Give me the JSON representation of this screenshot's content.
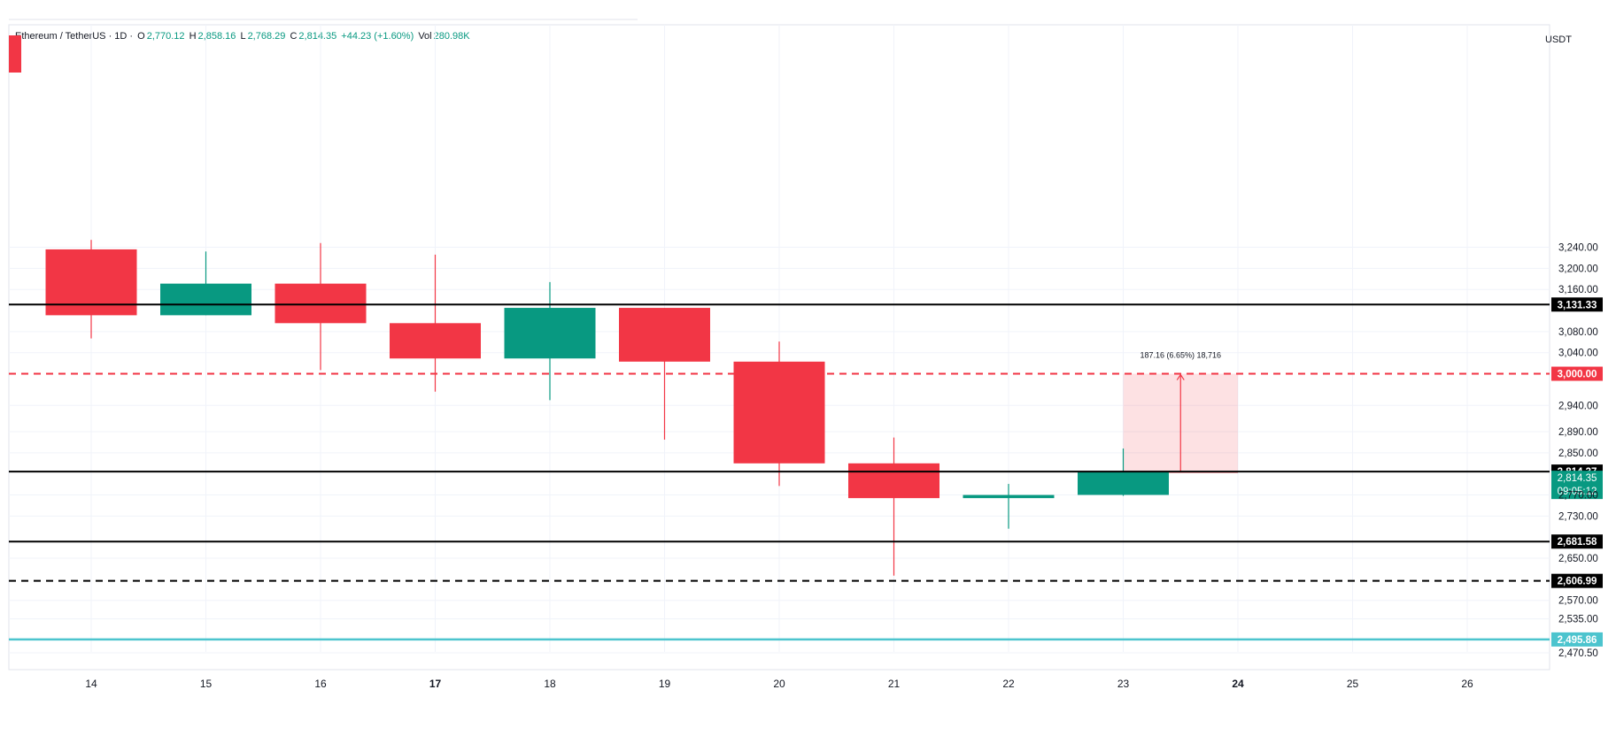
{
  "header": {
    "symbol": "Ethereum / TetherUS · 1D ·",
    "o_label": "O",
    "o_value": "2,770.12",
    "h_label": "H",
    "h_value": "2,858.16",
    "l_label": "L",
    "l_value": "2,768.29",
    "c_label": "C",
    "c_value": "2,814.35",
    "change": "+44.23 (+1.60%)",
    "vol_label": "Vol",
    "vol_value": "280.98K"
  },
  "currency": "USDT",
  "colors": {
    "up": "#089981",
    "down": "#F23645",
    "grid": "#F0F3FA",
    "cyan": "#4CC4CE",
    "target": "#F23645"
  },
  "chart_data": {
    "type": "candlestick",
    "x": [
      "14",
      "15",
      "16",
      "17",
      "18",
      "19",
      "20",
      "21",
      "22",
      "23",
      "24",
      "25",
      "26"
    ],
    "x_bold": [
      "17",
      "24"
    ],
    "candles": [
      {
        "x": "14",
        "open": 3236,
        "high": 3254,
        "low": 3067,
        "close": 3111
      },
      {
        "x": "15",
        "open": 3111,
        "high": 3232,
        "low": 3111,
        "close": 3171
      },
      {
        "x": "16",
        "open": 3171,
        "high": 3248,
        "low": 3007,
        "close": 3096
      },
      {
        "x": "17",
        "open": 3096,
        "high": 3226,
        "low": 2966,
        "close": 3029
      },
      {
        "x": "18",
        "open": 3029,
        "high": 3174,
        "low": 2950,
        "close": 3125
      },
      {
        "x": "19",
        "open": 3125,
        "high": 3125,
        "low": 2875,
        "close": 3023
      },
      {
        "x": "20",
        "open": 3023,
        "high": 3061,
        "low": 2787,
        "close": 2830
      },
      {
        "x": "21",
        "open": 2830,
        "high": 2879,
        "low": 2617,
        "close": 2764
      },
      {
        "x": "22",
        "open": 2764,
        "high": 2791,
        "low": 2706,
        "close": 2770
      },
      {
        "x": "23",
        "open": 2770.12,
        "high": 2858.16,
        "low": 2768.29,
        "close": 2814.35
      }
    ],
    "y_ticks": [
      "3,240.00",
      "3,200.00",
      "3,160.00",
      "3,080.00",
      "3,040.00",
      "2,940.00",
      "2,890.00",
      "2,850.00",
      "2,770.00",
      "2,730.00",
      "2,650.00",
      "2,570.00",
      "2,535.00",
      "2,470.50"
    ],
    "ylim": [
      2450,
      3290
    ],
    "horizontal_lines": [
      {
        "value": 3131.33,
        "label": "3,131.33",
        "style": "solid",
        "color": "#000000"
      },
      {
        "value": 3000.0,
        "label": "3,000.00",
        "style": "dashed",
        "color": "#F23645"
      },
      {
        "value": 2814.37,
        "label": "2,814.37",
        "style": "solid",
        "color": "#000000"
      },
      {
        "value": 2681.58,
        "label": "2,681.58",
        "style": "solid",
        "color": "#000000"
      },
      {
        "value": 2606.99,
        "label": "2,606.99",
        "style": "dashed",
        "color": "#000000"
      },
      {
        "value": 2495.86,
        "label": "2,495.86",
        "style": "solid",
        "color": "#4CC4CE"
      }
    ],
    "price_tag": {
      "value": 2814.35,
      "label": "2,814.35",
      "timer": "09:05:12"
    },
    "measure": {
      "x_start": "23",
      "x_end": "24",
      "from": 2813,
      "to": 3000,
      "label": "187.16 (6.65%) 18,716"
    }
  }
}
